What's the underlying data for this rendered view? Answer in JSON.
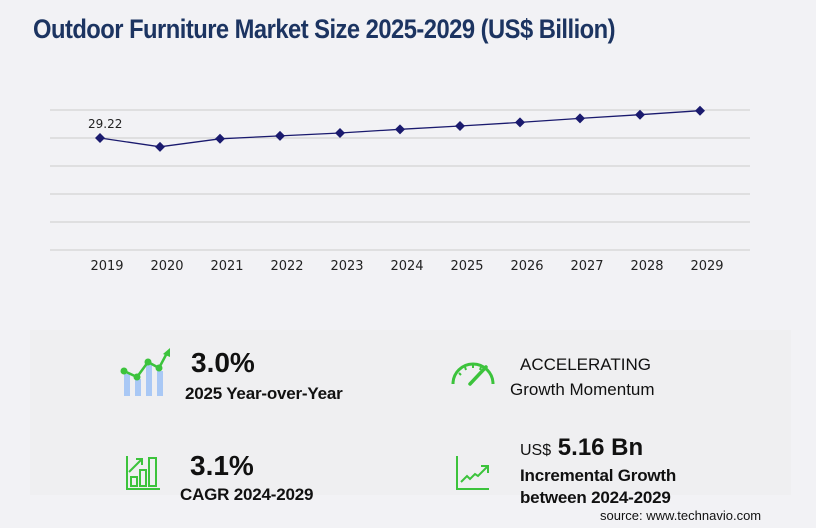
{
  "title": "Outdoor Furniture Market Size 2025-2029 (US$ Billion)",
  "chart_data": {
    "type": "line",
    "title": "Outdoor Furniture Market Size 2025-2029 (US$ Billion)",
    "xlabel": "",
    "ylabel": "",
    "categories": [
      "2019",
      "2020",
      "2021",
      "2022",
      "2023",
      "2024",
      "2025",
      "2026",
      "2027",
      "2028",
      "2029"
    ],
    "series": [
      {
        "name": "Market Size (US$ Billion)",
        "values": [
          29.22,
          26.8,
          29.0,
          29.8,
          30.6,
          31.6,
          32.5,
          33.5,
          34.6,
          35.6,
          36.7
        ],
        "color": "#1a1a6e"
      }
    ],
    "annotations": [
      {
        "category": "2019",
        "label": "29.22"
      }
    ],
    "grid": true,
    "gridlines": 6,
    "legend": "none",
    "y_axis_labels_shown": false
  },
  "chart": {
    "x_labels": [
      "2019",
      "2020",
      "2021",
      "2022",
      "2023",
      "2024",
      "2025",
      "2026",
      "2027",
      "2028",
      "2029"
    ],
    "first_point_label": "29.22"
  },
  "kpis": {
    "yoy": {
      "value": "3.0%",
      "label": "2025 Year-over-Year",
      "icon": "bar-line-growth-icon"
    },
    "momentum": {
      "value": "ACCELERATING",
      "label": "Growth Momentum",
      "icon": "speedometer-icon"
    },
    "cagr": {
      "value": "3.1%",
      "label": "CAGR 2024-2029",
      "icon": "bar-chart-arrow-icon"
    },
    "incremental": {
      "prefix": "US$",
      "value": "5.16 Bn",
      "label_line1": "Incremental Growth",
      "label_line2": "between 2024-2029",
      "icon": "trend-line-icon"
    }
  },
  "colors": {
    "title": "#1c3461",
    "line": "#1a1a6e",
    "icon_green": "#3cc33c",
    "icon_blue": "#a9c8f5",
    "grid": "#cccccc"
  },
  "source": "source: www.technavio.com"
}
